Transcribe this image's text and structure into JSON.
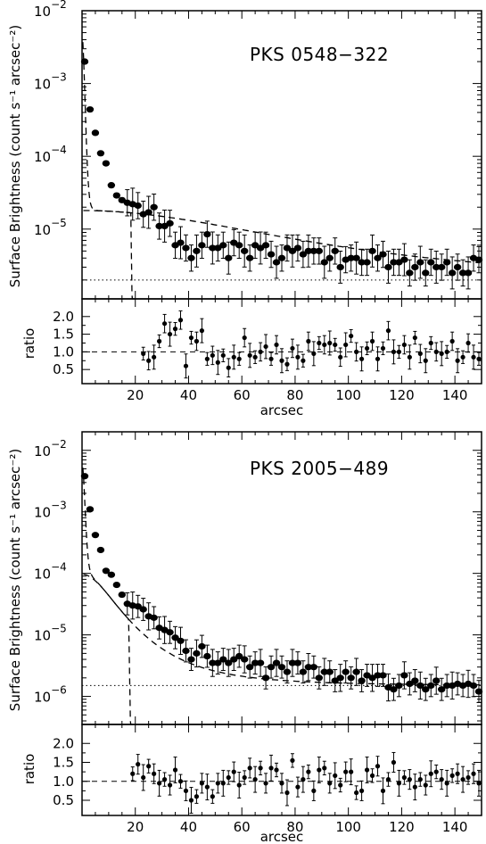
{
  "chart_data": [
    {
      "type": "scatter",
      "title": "PKS 0548−322",
      "ylabel": "Surface Brightness (count s⁻¹ arcsec⁻²)",
      "xlabel": "arcsec",
      "ratio_ylabel": "ratio",
      "y_scale": "log",
      "xlim": [
        0,
        150
      ],
      "ylim": [
        1.1e-06,
        0.01
      ],
      "ratio_ylim": [
        0.1,
        2.5
      ],
      "x_ticks": [
        20,
        40,
        60,
        80,
        100,
        120,
        140
      ],
      "y_ticks": [
        {
          "value": 1e-05,
          "label": "10",
          "exp": "−5"
        },
        {
          "value": 0.0001,
          "label": "10",
          "exp": "−4"
        },
        {
          "value": 0.001,
          "label": "10",
          "exp": "−3"
        },
        {
          "value": 0.01,
          "label": "10",
          "exp": "−2"
        }
      ],
      "ratio_ticks": [
        "0.5",
        "1.0",
        "1.5",
        "2.0"
      ],
      "background_level": 2e-06,
      "models": {
        "psf": {
          "A": 0.0045,
          "r0": 1.2,
          "beta": 3.3,
          "cutoff": 19.8
        },
        "beta_model": {
          "S0": 1.6e-05,
          "rc": 80,
          "beta": 0.7
        },
        "bkg": 2e-06
      },
      "series": [
        {
          "x": [
            1,
            3,
            5,
            7,
            9,
            11,
            13,
            15,
            17,
            19,
            21,
            23,
            25,
            27,
            29,
            31,
            33,
            35,
            37,
            39,
            41,
            43,
            45,
            47,
            49,
            51,
            53,
            55,
            57,
            59,
            61,
            63,
            65,
            67,
            69,
            71,
            73,
            75,
            77,
            79,
            81,
            83,
            85,
            87,
            89,
            91,
            93,
            95,
            97,
            99,
            101,
            103,
            105,
            107,
            109,
            111,
            113,
            115,
            117,
            119,
            121,
            123,
            125,
            127,
            129,
            131,
            133,
            135,
            137,
            139,
            141,
            143,
            145,
            147,
            149
          ],
          "y": [
            0.002,
            0.00044,
            0.00021,
            0.00011,
            8e-05,
            4e-05,
            2.9e-05,
            2.5e-05,
            2.3e-05,
            2.2e-05,
            2.1e-05,
            1.6e-05,
            1.7e-05,
            2e-05,
            1.1e-05,
            1.1e-05,
            1.2e-05,
            6e-06,
            6.5e-06,
            5.5e-06,
            4e-06,
            5e-06,
            6e-06,
            8.5e-06,
            5.5e-06,
            5.5e-06,
            6e-06,
            4e-06,
            6.5e-06,
            6e-06,
            5e-06,
            4e-06,
            6e-06,
            5.5e-06,
            6e-06,
            4.5e-06,
            3.5e-06,
            4e-06,
            5.5e-06,
            5e-06,
            5.5e-06,
            4.5e-06,
            5e-06,
            5e-06,
            5e-06,
            3.5e-06,
            4e-06,
            5e-06,
            3e-06,
            3.8e-06,
            4e-06,
            4e-06,
            3.5e-06,
            3.5e-06,
            5e-06,
            4e-06,
            4.5e-06,
            3e-06,
            3.5e-06,
            3.5e-06,
            3.8e-06,
            2.5e-06,
            3e-06,
            3.5e-06,
            2.5e-06,
            3.5e-06,
            3e-06,
            3e-06,
            3.5e-06,
            2.5e-06,
            3e-06,
            2.5e-06,
            2.5e-06,
            4e-06,
            3.8e-06
          ]
        },
        {
          "ratio_x": [
            23,
            25,
            27,
            29,
            31,
            33,
            35,
            37,
            39,
            41,
            43,
            45,
            47,
            49,
            51,
            53,
            55,
            57,
            59,
            61,
            63,
            65,
            67,
            69,
            71,
            73,
            75,
            77,
            79,
            81,
            83,
            85,
            87,
            89,
            91,
            93,
            95,
            97,
            99,
            101,
            103,
            105,
            107,
            109,
            111,
            113,
            115,
            117,
            119,
            121,
            123,
            125,
            127,
            129,
            131,
            133,
            135,
            137,
            139,
            141,
            143,
            145,
            147,
            149
          ],
          "ratio_y": [
            0.95,
            0.75,
            0.85,
            1.3,
            1.8,
            1.5,
            1.65,
            1.9,
            0.6,
            1.4,
            1.3,
            1.6,
            0.8,
            0.9,
            0.7,
            0.9,
            0.55,
            0.85,
            0.8,
            1.4,
            0.9,
            0.85,
            1.0,
            1.15,
            0.8,
            1.2,
            0.75,
            0.65,
            1.1,
            0.85,
            0.75,
            1.3,
            0.95,
            1.25,
            1.2,
            1.25,
            1.2,
            0.85,
            1.2,
            1.45,
            1.0,
            0.8,
            1.1,
            1.3,
            0.8,
            1.1,
            1.6,
            1.0,
            1.0,
            1.2,
            0.85,
            1.4,
            0.95,
            0.75,
            1.25,
            1.0,
            0.95,
            1.0,
            1.3,
            0.75,
            0.85,
            1.25,
            0.85,
            0.8
          ]
        }
      ]
    },
    {
      "type": "scatter",
      "title": "PKS 2005−489",
      "ylabel": "Surface Brightness (count s⁻¹ arcsec⁻²)",
      "xlabel": "arcsec",
      "ratio_ylabel": "ratio",
      "y_scale": "log",
      "xlim": [
        0,
        150
      ],
      "ylim": [
        3.5e-07,
        0.02
      ],
      "ratio_ylim": [
        0.1,
        2.5
      ],
      "x_ticks": [
        20,
        40,
        60,
        80,
        100,
        120,
        140
      ],
      "y_ticks": [
        {
          "value": 1e-06,
          "label": "10",
          "exp": "−6"
        },
        {
          "value": 1e-05,
          "label": "10",
          "exp": "−5"
        },
        {
          "value": 0.0001,
          "label": "10",
          "exp": "−4"
        },
        {
          "value": 0.001,
          "label": "10",
          "exp": "−3"
        },
        {
          "value": 0.01,
          "label": "10",
          "exp": "−2"
        }
      ],
      "ratio_ticks": [
        "0.5",
        "1.0",
        "1.5",
        "2.0"
      ],
      "background_level": 1.5e-06,
      "models": {
        "psf": {
          "A": 0.006,
          "r0": 1.3,
          "beta": 3.0,
          "cutoff": 19.0
        },
        "beta_model": {
          "S0": 9.5e-05,
          "rc": 12,
          "beta": 0.68
        },
        "bkg": 1.5e-06
      },
      "series": [
        {
          "x": [
            1,
            3,
            5,
            7,
            9,
            11,
            13,
            15,
            17,
            19,
            21,
            23,
            25,
            27,
            29,
            31,
            33,
            35,
            37,
            39,
            41,
            43,
            45,
            47,
            49,
            51,
            53,
            55,
            57,
            59,
            61,
            63,
            65,
            67,
            69,
            71,
            73,
            75,
            77,
            79,
            81,
            83,
            85,
            87,
            89,
            91,
            93,
            95,
            97,
            99,
            101,
            103,
            105,
            107,
            109,
            111,
            113,
            115,
            117,
            119,
            121,
            123,
            125,
            127,
            129,
            131,
            133,
            135,
            137,
            139,
            141,
            143,
            145,
            147,
            149
          ],
          "y": [
            0.0038,
            0.0011,
            0.00042,
            0.00024,
            0.00011,
            9.5e-05,
            6.5e-05,
            4.5e-05,
            3.2e-05,
            3e-05,
            2.9e-05,
            2.6e-05,
            2e-05,
            1.9e-05,
            1.3e-05,
            1.2e-05,
            1.1e-05,
            9e-06,
            8e-06,
            5.5e-06,
            4e-06,
            5e-06,
            6.5e-06,
            4.5e-06,
            3.5e-06,
            3.5e-06,
            4e-06,
            3.5e-06,
            4e-06,
            4.5e-06,
            4e-06,
            3e-06,
            3.5e-06,
            3.5e-06,
            2e-06,
            3e-06,
            3.5e-06,
            3e-06,
            2.5e-06,
            3.5e-06,
            3.5e-06,
            2.5e-06,
            3e-06,
            3e-06,
            2e-06,
            2.5e-06,
            2.5e-06,
            1.8e-06,
            2e-06,
            2.5e-06,
            2e-06,
            2.5e-06,
            1.8e-06,
            2.2e-06,
            2e-06,
            2.2e-06,
            2.2e-06,
            1.4e-06,
            1.3e-06,
            1.5e-06,
            2.2e-06,
            1.6e-06,
            1.8e-06,
            1.5e-06,
            1.3e-06,
            1.5e-06,
            1.8e-06,
            1.3e-06,
            1.5e-06,
            1.5e-06,
            1.6e-06,
            1.5e-06,
            1.6e-06,
            1.5e-06,
            1.2e-06
          ]
        },
        {
          "ratio_x": [
            19,
            21,
            23,
            25,
            27,
            29,
            31,
            33,
            35,
            37,
            39,
            41,
            43,
            45,
            47,
            49,
            51,
            53,
            55,
            57,
            59,
            61,
            63,
            65,
            67,
            69,
            71,
            73,
            75,
            77,
            79,
            81,
            83,
            85,
            87,
            89,
            91,
            93,
            95,
            97,
            99,
            101,
            103,
            105,
            107,
            109,
            111,
            113,
            115,
            117,
            119,
            121,
            123,
            125,
            127,
            129,
            131,
            133,
            135,
            137,
            139,
            141,
            143,
            145,
            147,
            149
          ],
          "ratio_y": [
            1.2,
            1.45,
            1.1,
            1.4,
            1.2,
            0.95,
            1.05,
            0.9,
            1.3,
            1.0,
            0.75,
            0.5,
            0.6,
            0.95,
            0.85,
            0.6,
            0.95,
            0.95,
            1.1,
            1.25,
            0.9,
            1.1,
            1.35,
            1.05,
            1.35,
            0.95,
            1.35,
            1.3,
            0.95,
            0.7,
            1.55,
            0.85,
            1.05,
            1.25,
            0.75,
            1.3,
            1.35,
            0.95,
            1.15,
            0.9,
            1.25,
            1.25,
            0.7,
            0.75,
            1.3,
            1.15,
            1.4,
            0.75,
            1.05,
            1.5,
            0.95,
            1.1,
            1.05,
            0.85,
            1.05,
            0.9,
            1.2,
            1.25,
            1.05,
            0.95,
            1.15,
            1.2,
            1.05,
            1.1,
            1.2,
            0.95
          ]
        }
      ]
    }
  ]
}
